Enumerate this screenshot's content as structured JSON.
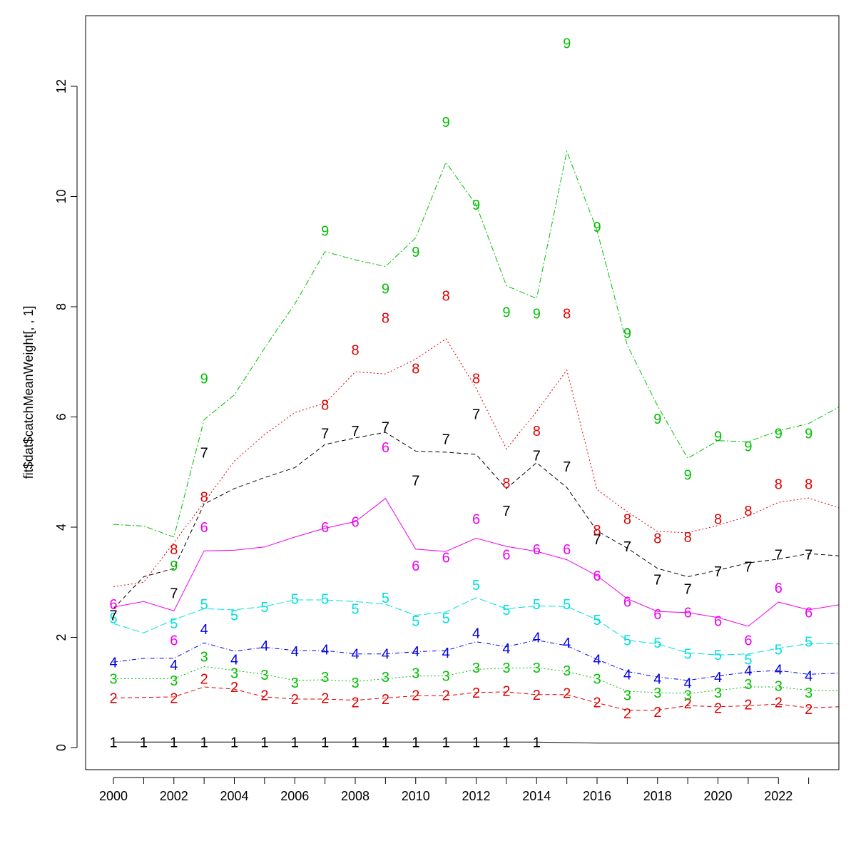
{
  "chart_data": {
    "type": "line",
    "title": "",
    "xlabel": "",
    "ylabel": "fit$dat$catchMeanWeight[, , 1]",
    "xlim": [
      2000,
      2024
    ],
    "ylim": [
      0,
      13
    ],
    "x_ticks": [
      2000,
      2002,
      2004,
      2006,
      2008,
      2010,
      2012,
      2014,
      2016,
      2018,
      2020,
      2022
    ],
    "y_ticks": [
      0,
      2,
      4,
      6,
      8,
      10,
      12
    ],
    "grid": false,
    "legend": "none",
    "series": [
      {
        "label": "1",
        "color": "#000000",
        "dash": "",
        "line_x": [
          2000,
          2001,
          2002,
          2003,
          2004,
          2005,
          2006,
          2007,
          2008,
          2009,
          2010,
          2011,
          2012,
          2013,
          2014,
          2015,
          2016,
          2017,
          2018,
          2019,
          2020,
          2021,
          2022,
          2023,
          2024
        ],
        "line_y": [
          0.1,
          0.1,
          0.1,
          0.1,
          0.1,
          0.1,
          0.1,
          0.1,
          0.1,
          0.1,
          0.1,
          0.1,
          0.1,
          0.1,
          0.1,
          0.09,
          0.08,
          0.08,
          0.08,
          0.08,
          0.08,
          0.08,
          0.08,
          0.08,
          0.08
        ],
        "obs_x": [
          2000,
          2001,
          2002,
          2003,
          2004,
          2005,
          2006,
          2007,
          2008,
          2009,
          2010,
          2011,
          2012,
          2013,
          2014
        ],
        "obs_y": [
          0.1,
          0.1,
          0.1,
          0.1,
          0.1,
          0.1,
          0.1,
          0.1,
          0.1,
          0.1,
          0.1,
          0.1,
          0.1,
          0.1,
          0.1
        ]
      },
      {
        "label": "2",
        "color": "#df0000",
        "dash": "6,4",
        "line_x": [
          2000,
          2001,
          2002,
          2003,
          2004,
          2005,
          2006,
          2007,
          2008,
          2009,
          2010,
          2011,
          2012,
          2013,
          2014,
          2015,
          2016,
          2017,
          2018,
          2019,
          2020,
          2021,
          2022,
          2023,
          2024
        ],
        "line_y": [
          0.9,
          0.91,
          0.92,
          1.1,
          1.06,
          0.92,
          0.88,
          0.88,
          0.86,
          0.9,
          0.94,
          0.94,
          1.0,
          1.01,
          0.96,
          0.96,
          0.81,
          0.68,
          0.68,
          0.76,
          0.74,
          0.76,
          0.79,
          0.72,
          0.74
        ],
        "obs_x": [
          2000,
          2002,
          2003,
          2004,
          2005,
          2006,
          2007,
          2008,
          2009,
          2010,
          2011,
          2012,
          2013,
          2014,
          2015,
          2016,
          2017,
          2018,
          2019,
          2020,
          2021,
          2022,
          2023
        ],
        "obs_y": [
          0.9,
          0.9,
          1.25,
          1.1,
          0.95,
          0.88,
          0.9,
          0.82,
          0.88,
          0.95,
          0.95,
          1.0,
          1.03,
          0.96,
          0.99,
          0.82,
          0.62,
          0.65,
          0.8,
          0.72,
          0.78,
          0.82,
          0.7
        ]
      },
      {
        "label": "3",
        "color": "#00bf00",
        "dash": "2,3",
        "line_x": [
          2000,
          2001,
          2002,
          2003,
          2004,
          2005,
          2006,
          2007,
          2008,
          2009,
          2010,
          2011,
          2012,
          2013,
          2014,
          2015,
          2016,
          2017,
          2018,
          2019,
          2020,
          2021,
          2022,
          2023,
          2024
        ],
        "line_y": [
          1.25,
          1.25,
          1.25,
          1.47,
          1.4,
          1.33,
          1.22,
          1.23,
          1.2,
          1.25,
          1.3,
          1.3,
          1.42,
          1.44,
          1.45,
          1.38,
          1.25,
          1.02,
          1.0,
          0.98,
          1.04,
          1.1,
          1.1,
          1.04,
          1.03
        ],
        "obs_x": [
          2000,
          2002,
          2003,
          2004,
          2005,
          2006,
          2007,
          2008,
          2009,
          2010,
          2011,
          2012,
          2013,
          2014,
          2015,
          2016,
          2017,
          2018,
          2019,
          2020,
          2021,
          2022,
          2023
        ],
        "obs_y": [
          1.25,
          1.22,
          1.65,
          1.35,
          1.32,
          1.18,
          1.28,
          1.18,
          1.28,
          1.35,
          1.3,
          1.45,
          1.45,
          1.45,
          1.4,
          1.25,
          0.95,
          1.0,
          0.95,
          1.0,
          1.15,
          1.12,
          1.0
        ]
      },
      {
        "label": "4",
        "color": "#0000e6",
        "dash": "6,3,1,3",
        "line_x": [
          2000,
          2001,
          2002,
          2003,
          2004,
          2005,
          2006,
          2007,
          2008,
          2009,
          2010,
          2011,
          2012,
          2013,
          2014,
          2015,
          2016,
          2017,
          2018,
          2019,
          2020,
          2021,
          2022,
          2023,
          2024
        ],
        "line_y": [
          1.55,
          1.62,
          1.62,
          1.9,
          1.75,
          1.82,
          1.76,
          1.76,
          1.7,
          1.7,
          1.74,
          1.76,
          1.92,
          1.83,
          1.95,
          1.85,
          1.6,
          1.38,
          1.28,
          1.22,
          1.3,
          1.37,
          1.4,
          1.33,
          1.35
        ],
        "obs_x": [
          2000,
          2002,
          2003,
          2004,
          2005,
          2006,
          2007,
          2008,
          2009,
          2010,
          2011,
          2012,
          2013,
          2014,
          2015,
          2016,
          2017,
          2018,
          2019,
          2020,
          2021,
          2022,
          2023
        ],
        "obs_y": [
          1.55,
          1.5,
          2.15,
          1.6,
          1.85,
          1.75,
          1.78,
          1.7,
          1.7,
          1.75,
          1.72,
          2.08,
          1.8,
          2.0,
          1.9,
          1.6,
          1.33,
          1.25,
          1.17,
          1.28,
          1.4,
          1.42,
          1.3
        ]
      },
      {
        "label": "5",
        "color": "#00dfdf",
        "dash": "10,4",
        "line_x": [
          2000,
          2001,
          2002,
          2003,
          2004,
          2005,
          2006,
          2007,
          2008,
          2009,
          2010,
          2011,
          2012,
          2013,
          2014,
          2015,
          2016,
          2017,
          2018,
          2019,
          2020,
          2021,
          2022,
          2023,
          2024
        ],
        "line_y": [
          2.25,
          2.08,
          2.32,
          2.52,
          2.5,
          2.56,
          2.68,
          2.68,
          2.65,
          2.6,
          2.4,
          2.46,
          2.72,
          2.52,
          2.57,
          2.56,
          2.32,
          1.95,
          1.88,
          1.72,
          1.68,
          1.7,
          1.8,
          1.89,
          1.88
        ],
        "obs_x": [
          2000,
          2002,
          2003,
          2004,
          2005,
          2006,
          2007,
          2008,
          2009,
          2010,
          2011,
          2012,
          2013,
          2014,
          2015,
          2016,
          2017,
          2018,
          2019,
          2020,
          2021,
          2022,
          2023
        ],
        "obs_y": [
          2.35,
          2.25,
          2.6,
          2.4,
          2.55,
          2.7,
          2.7,
          2.52,
          2.72,
          2.3,
          2.35,
          2.95,
          2.5,
          2.6,
          2.6,
          2.32,
          1.95,
          1.9,
          1.7,
          1.68,
          1.6,
          1.78,
          1.92
        ]
      },
      {
        "label": "6",
        "color": "#ee00ee",
        "dash": "",
        "line_x": [
          2000,
          2001,
          2002,
          2003,
          2004,
          2005,
          2006,
          2007,
          2008,
          2009,
          2010,
          2011,
          2012,
          2013,
          2014,
          2015,
          2016,
          2017,
          2018,
          2019,
          2020,
          2021,
          2022,
          2023,
          2024
        ],
        "line_y": [
          2.55,
          2.65,
          2.48,
          3.57,
          3.58,
          3.64,
          3.82,
          3.98,
          4.1,
          4.52,
          3.6,
          3.56,
          3.8,
          3.65,
          3.56,
          3.41,
          3.12,
          2.7,
          2.47,
          2.45,
          2.36,
          2.2,
          2.64,
          2.5,
          2.59
        ],
        "obs_x": [
          2000,
          2002,
          2003,
          2007,
          2008,
          2009,
          2010,
          2011,
          2012,
          2013,
          2014,
          2015,
          2016,
          2017,
          2018,
          2019,
          2020,
          2021,
          2022,
          2023
        ],
        "obs_y": [
          2.6,
          1.95,
          4.0,
          4.0,
          4.1,
          5.45,
          3.3,
          3.45,
          4.15,
          3.5,
          3.6,
          3.6,
          3.12,
          2.65,
          2.42,
          2.45,
          2.3,
          1.95,
          2.9,
          2.45
        ]
      },
      {
        "label": "7",
        "color": "#000000",
        "dash": "6,4",
        "line_x": [
          2000,
          2001,
          2002,
          2003,
          2004,
          2005,
          2006,
          2007,
          2008,
          2009,
          2010,
          2011,
          2012,
          2013,
          2014,
          2015,
          2016,
          2017,
          2018,
          2019,
          2020,
          2021,
          2022,
          2023,
          2024
        ],
        "line_y": [
          2.52,
          3.1,
          3.25,
          4.42,
          4.7,
          4.9,
          5.08,
          5.5,
          5.62,
          5.72,
          5.38,
          5.36,
          5.32,
          4.7,
          5.17,
          4.72,
          3.93,
          3.62,
          3.25,
          3.1,
          3.22,
          3.35,
          3.42,
          3.52,
          3.48
        ],
        "obs_x": [
          2000,
          2002,
          2003,
          2007,
          2008,
          2009,
          2010,
          2011,
          2012,
          2013,
          2014,
          2015,
          2016,
          2017,
          2018,
          2019,
          2020,
          2021,
          2022,
          2023
        ],
        "obs_y": [
          2.4,
          2.8,
          5.35,
          5.7,
          5.75,
          5.82,
          4.85,
          5.6,
          6.05,
          4.3,
          5.3,
          5.1,
          3.78,
          3.65,
          3.05,
          2.88,
          3.2,
          3.28,
          3.5,
          3.5
        ]
      },
      {
        "label": "8",
        "color": "#df0000",
        "dash": "2,3",
        "line_x": [
          2000,
          2001,
          2002,
          2003,
          2004,
          2005,
          2006,
          2007,
          2008,
          2009,
          2010,
          2011,
          2012,
          2013,
          2014,
          2015,
          2016,
          2017,
          2018,
          2019,
          2020,
          2021,
          2022,
          2023,
          2024
        ],
        "line_y": [
          2.92,
          3.0,
          3.72,
          4.45,
          5.2,
          5.68,
          6.08,
          6.25,
          6.82,
          6.78,
          7.05,
          7.42,
          6.52,
          5.42,
          6.1,
          6.85,
          4.68,
          4.28,
          3.92,
          3.9,
          4.03,
          4.2,
          4.45,
          4.53,
          4.35
        ],
        "obs_x": [
          2002,
          2003,
          2007,
          2008,
          2009,
          2010,
          2011,
          2012,
          2013,
          2014,
          2015,
          2016,
          2017,
          2018,
          2019,
          2020,
          2021,
          2022,
          2023
        ],
        "obs_y": [
          3.6,
          4.55,
          6.22,
          7.22,
          7.8,
          6.88,
          8.2,
          6.7,
          4.8,
          5.75,
          7.88,
          3.95,
          4.15,
          3.8,
          3.82,
          4.15,
          4.3,
          4.78,
          4.78
        ]
      },
      {
        "label": "9",
        "color": "#00bf00",
        "dash": "8,3,2,3",
        "line_x": [
          2000,
          2001,
          2002,
          2003,
          2004,
          2005,
          2006,
          2007,
          2008,
          2009,
          2010,
          2011,
          2012,
          2013,
          2014,
          2015,
          2016,
          2017,
          2018,
          2019,
          2020,
          2021,
          2022,
          2023,
          2024
        ],
        "line_y": [
          4.05,
          4.02,
          3.82,
          5.95,
          6.4,
          7.25,
          8.05,
          9.0,
          8.85,
          8.73,
          9.25,
          10.62,
          9.85,
          8.38,
          8.15,
          10.82,
          9.38,
          7.3,
          6.2,
          5.25,
          5.57,
          5.55,
          5.75,
          5.88,
          6.18
        ],
        "obs_x": [
          2002,
          2003,
          2007,
          2009,
          2010,
          2011,
          2012,
          2013,
          2014,
          2015,
          2016,
          2017,
          2018,
          2019,
          2020,
          2021,
          2022,
          2023
        ],
        "obs_y": [
          3.3,
          6.7,
          9.38,
          8.33,
          9.0,
          11.35,
          9.85,
          7.9,
          7.88,
          12.78,
          9.45,
          7.52,
          5.97,
          4.95,
          5.65,
          5.47,
          5.7,
          5.7
        ]
      }
    ]
  }
}
